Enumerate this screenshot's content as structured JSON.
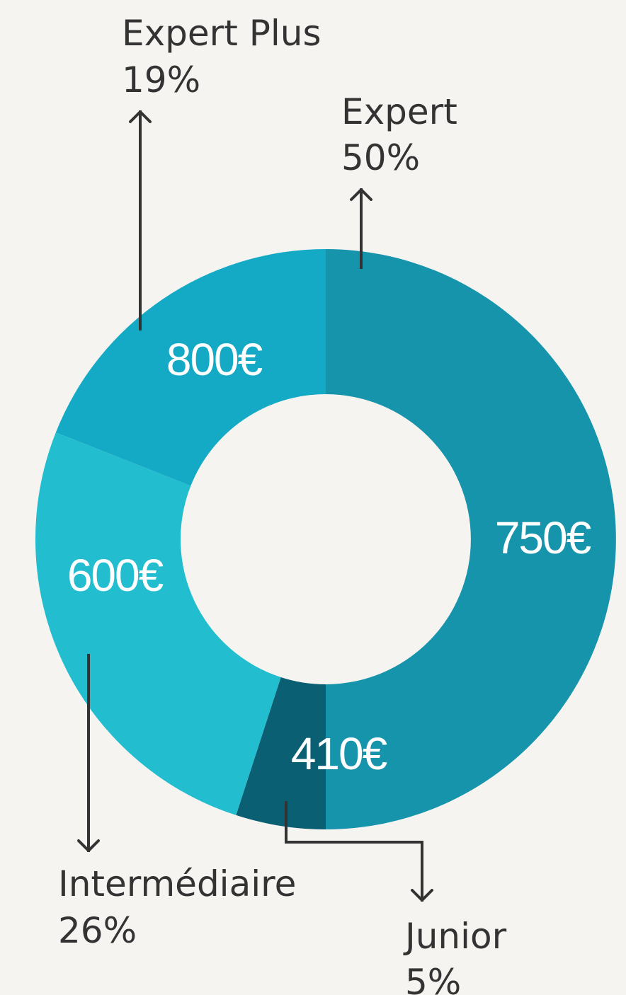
{
  "chart_data": {
    "type": "pie",
    "variant": "donut",
    "title": "",
    "slices": [
      {
        "label": "Expert",
        "percent": 50,
        "value_label": "750€",
        "color": "#1594ab"
      },
      {
        "label": "Junior",
        "percent": 5,
        "value_label": "410€",
        "color": "#0a5f73"
      },
      {
        "label": "Intermédiaire",
        "percent": 26,
        "value_label": "600€",
        "color": "#23bdd0"
      },
      {
        "label": "Expert Plus",
        "percent": 19,
        "value_label": "800€",
        "color": "#14aac6"
      }
    ],
    "legend": "callouts"
  },
  "colors": {
    "background": "#f6f4f1",
    "text": "#333333",
    "slice_text": "#ffffff"
  }
}
